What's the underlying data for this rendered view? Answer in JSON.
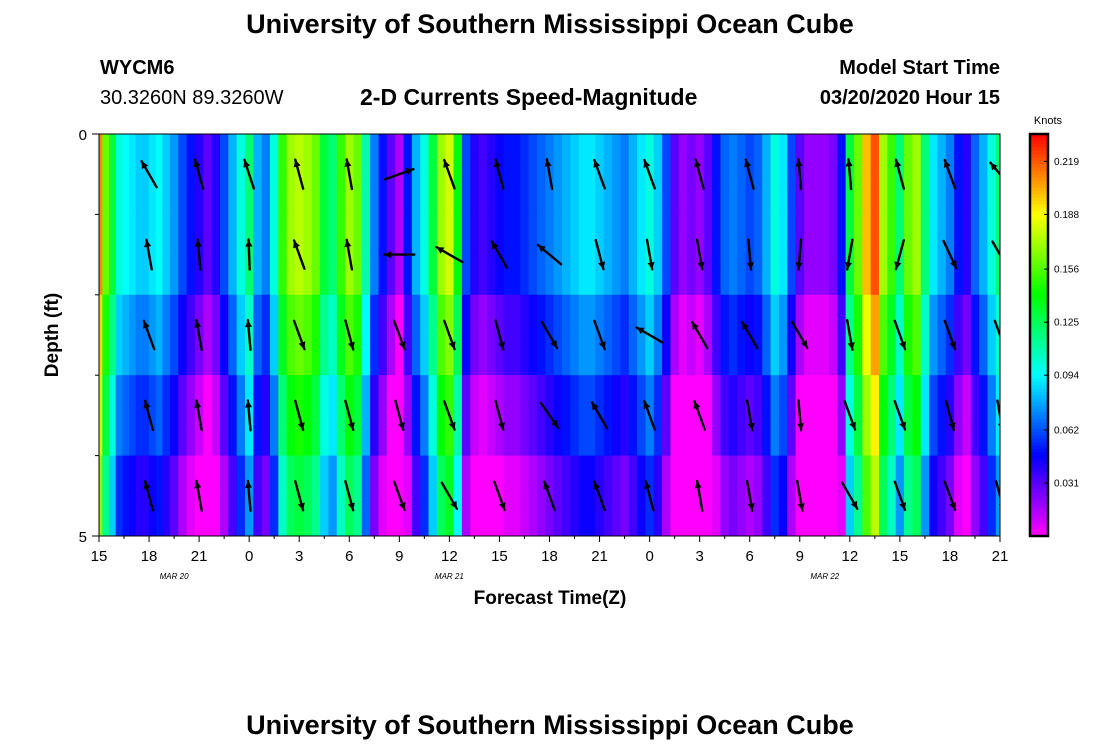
{
  "header": {
    "title": "University of Southern Mississippi Ocean Cube",
    "station_id": "WYCM6",
    "location": "30.3260N 89.3260W",
    "subtitle": "2-D Currents Speed-Magnitude",
    "model_start_label": "Model Start Time",
    "model_start_value": "03/20/2020 Hour 15"
  },
  "footer": {
    "title": "University of Southern Mississippi Ocean Cube"
  },
  "chart_data": {
    "type": "heatmap",
    "title": "2-D Currents Speed-Magnitude",
    "xlabel": "Forecast Time(Z)",
    "ylabel": "Depth (ft)",
    "x_tick_labels": [
      "15",
      "18",
      "21",
      "0",
      "3",
      "6",
      "9",
      "12",
      "15",
      "18",
      "21",
      "0",
      "3",
      "6",
      "9",
      "12",
      "15",
      "18",
      "21"
    ],
    "x_range_hours": [
      0,
      54
    ],
    "date_labels": [
      {
        "hour": 4.5,
        "text": "MAR 20"
      },
      {
        "hour": 21,
        "text": "MAR 21"
      },
      {
        "hour": 43.5,
        "text": "MAR 22"
      }
    ],
    "y_range": [
      0,
      5
    ],
    "y_tick_labels": [
      "0",
      "5"
    ],
    "y_minor_ticks": 4,
    "colorbar": {
      "unit": "Knots",
      "min": 0.0,
      "max": 0.235,
      "tick_values": [
        0.219,
        0.188,
        0.156,
        0.125,
        0.094,
        0.062,
        0.031
      ],
      "tick_labels": [
        "0.219",
        "0.188",
        "0.156",
        "0.125",
        "0.094",
        "0.062",
        "0.031"
      ]
    },
    "depth_layers": 5,
    "speed_profile_hours": [
      0,
      0.4,
      0.8,
      1.2,
      1.6,
      2,
      2.4,
      2.8,
      3.2,
      3.6,
      4,
      4.5,
      5,
      5.5,
      6,
      6.5,
      7,
      7.5,
      8,
      8.5,
      9,
      9.5,
      10,
      10.5,
      11,
      11.5,
      12,
      12.5,
      13,
      13.5,
      14,
      14.5,
      15,
      15.5,
      16,
      16.5,
      17,
      17.5,
      18,
      18.5,
      19,
      19.5,
      20,
      20.5,
      21,
      21.5,
      22,
      22.5,
      23,
      23.5,
      24,
      24.5,
      25,
      25.5,
      26,
      26.5,
      27,
      27.5,
      28,
      28.5,
      29,
      29.5,
      30,
      30.5,
      31,
      31.5,
      32,
      32.5,
      33,
      33.5,
      34,
      34.5,
      35,
      35.5,
      36,
      36.5,
      37,
      37.5,
      38,
      38.5,
      39,
      39.5,
      40,
      40.5,
      41,
      41.5,
      42,
      42.5,
      43,
      43.5,
      44,
      44.5,
      45,
      45.5,
      46,
      46.5,
      47,
      47.5,
      48,
      48.5,
      49,
      49.5,
      50,
      50.5,
      51,
      51.5,
      52,
      52.5,
      53,
      53.5,
      54
    ],
    "speed_profile_knots": [
      0.21,
      0.16,
      0.13,
      0.1,
      0.095,
      0.09,
      0.085,
      0.085,
      0.09,
      0.095,
      0.085,
      0.075,
      0.06,
      0.05,
      0.04,
      0.03,
      0.04,
      0.06,
      0.08,
      0.1,
      0.12,
      0.08,
      0.07,
      0.1,
      0.15,
      0.17,
      0.175,
      0.17,
      0.16,
      0.13,
      0.12,
      0.15,
      0.17,
      0.16,
      0.11,
      0.07,
      0.05,
      0.03,
      0.015,
      0.05,
      0.08,
      0.1,
      0.13,
      0.17,
      0.18,
      0.14,
      0.06,
      0.04,
      0.035,
      0.04,
      0.045,
      0.05,
      0.05,
      0.055,
      0.06,
      0.065,
      0.07,
      0.075,
      0.08,
      0.085,
      0.09,
      0.09,
      0.085,
      0.08,
      0.075,
      0.07,
      0.08,
      0.09,
      0.1,
      0.085,
      0.06,
      0.03,
      0.02,
      0.025,
      0.02,
      0.03,
      0.05,
      0.065,
      0.07,
      0.065,
      0.06,
      0.065,
      0.08,
      0.1,
      0.09,
      0.06,
      0.03,
      0.02,
      0.02,
      0.02,
      0.025,
      0.05,
      0.13,
      0.16,
      0.2,
      0.22,
      0.17,
      0.15,
      0.12,
      0.16,
      0.17,
      0.12,
      0.09,
      0.08,
      0.07,
      0.05,
      0.04,
      0.065,
      0.08,
      0.1,
      0.12
    ],
    "depth_adjust_knots": [
      0.0,
      0.0,
      -0.015,
      -0.03,
      -0.045
    ],
    "arrow_columns_hours": [
      3,
      6,
      9,
      12,
      15,
      18,
      21,
      24,
      27,
      30,
      33,
      36,
      39,
      42,
      45,
      48,
      51,
      54
    ],
    "arrow_directions_deg_by_layer": [
      [
        330,
        345,
        342,
        345,
        350,
        70,
        340,
        345,
        350,
        340,
        340,
        345,
        345,
        355,
        355,
        345,
        340,
        320
      ],
      [
        350,
        355,
        358,
        340,
        350,
        270,
        300,
        330,
        310,
        165,
        170,
        170,
        175,
        185,
        190,
        195,
        155,
        150
      ],
      [
        340,
        350,
        355,
        160,
        165,
        160,
        160,
        165,
        150,
        160,
        300,
        330,
        330,
        150,
        170,
        160,
        160,
        160
      ],
      [
        345,
        350,
        355,
        165,
        165,
        165,
        160,
        165,
        145,
        330,
        340,
        340,
        170,
        175,
        160,
        160,
        165,
        170
      ],
      [
        345,
        350,
        355,
        165,
        165,
        160,
        150,
        160,
        340,
        340,
        345,
        350,
        170,
        170,
        150,
        160,
        160,
        165
      ]
    ]
  }
}
